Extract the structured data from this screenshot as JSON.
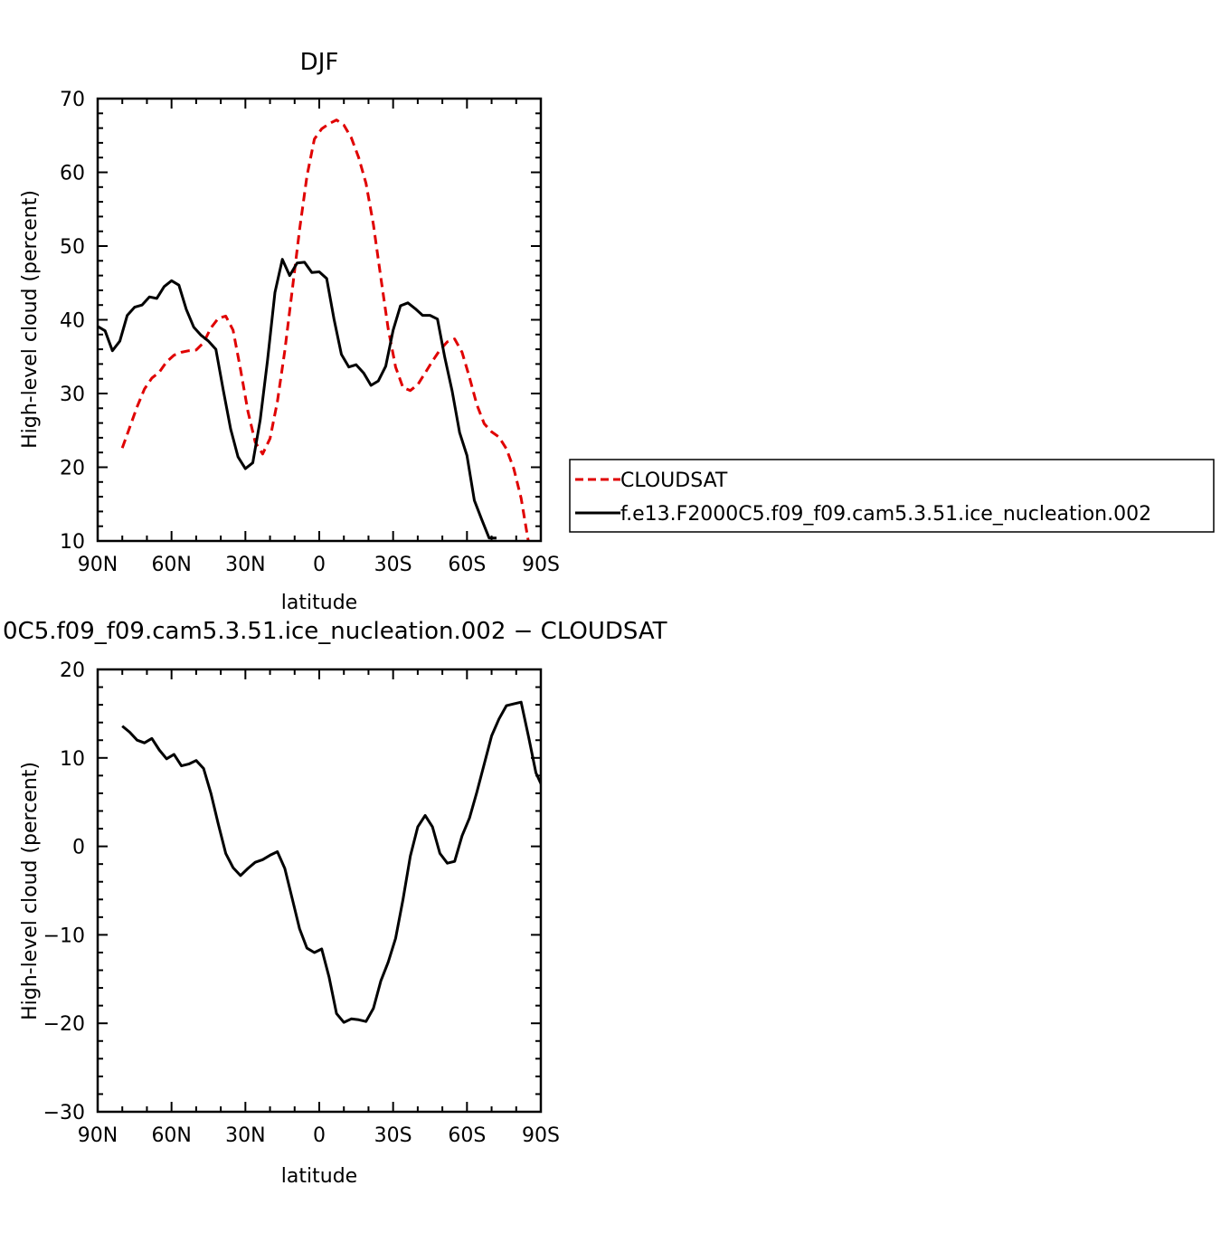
{
  "chart_data": [
    {
      "type": "line",
      "title": "DJF",
      "xlabel": "latitude",
      "ylabel": "High-level cloud (percent)",
      "xlim": [
        90,
        -90
      ],
      "ylim": [
        10,
        70
      ],
      "xticks": [
        {
          "value": 90,
          "label": "90N"
        },
        {
          "value": 60,
          "label": "60N"
        },
        {
          "value": 30,
          "label": "30N"
        },
        {
          "value": 0,
          "label": "0"
        },
        {
          "value": -30,
          "label": "30S"
        },
        {
          "value": -60,
          "label": "60S"
        },
        {
          "value": -90,
          "label": "90S"
        }
      ],
      "yticks": [
        10,
        20,
        30,
        40,
        50,
        60,
        70
      ],
      "legend": {
        "placement": "right"
      },
      "series": [
        {
          "name": "CLOUDSAT",
          "color": "#e00000",
          "dash": "dashed",
          "points": [
            [
              80,
              22.6
            ],
            [
              77,
              25.4
            ],
            [
              74,
              28.2
            ],
            [
              71,
              30.6
            ],
            [
              68,
              32.1
            ],
            [
              65,
              32.9
            ],
            [
              62,
              34.3
            ],
            [
              59,
              35.2
            ],
            [
              56,
              35.6
            ],
            [
              53,
              35.8
            ],
            [
              50,
              35.9
            ],
            [
              47,
              36.9
            ],
            [
              44,
              38.9
            ],
            [
              41,
              40.2
            ],
            [
              38,
              40.5
            ],
            [
              35,
              38.6
            ],
            [
              32,
              33.3
            ],
            [
              29,
              27.6
            ],
            [
              26,
              23.4
            ],
            [
              23,
              21.8
            ],
            [
              20,
              23.9
            ],
            [
              17,
              28.9
            ],
            [
              14,
              35.8
            ],
            [
              11,
              44.0
            ],
            [
              8,
              52.2
            ],
            [
              5,
              59.5
            ],
            [
              2,
              64.5
            ],
            [
              -1,
              65.9
            ],
            [
              -4,
              66.6
            ],
            [
              -7,
              67.1
            ],
            [
              -10,
              66.4
            ],
            [
              -13,
              64.7
            ],
            [
              -16,
              62.0
            ],
            [
              -19,
              58.5
            ],
            [
              -22,
              52.9
            ],
            [
              -25,
              45.7
            ],
            [
              -28,
              38.8
            ],
            [
              -31,
              33.6
            ],
            [
              -34,
              30.8
            ],
            [
              -37,
              30.4
            ],
            [
              -40,
              31.2
            ],
            [
              -43,
              32.8
            ],
            [
              -46,
              34.4
            ],
            [
              -49,
              35.9
            ],
            [
              -52,
              37.0
            ],
            [
              -55,
              37.4
            ],
            [
              -58,
              35.6
            ],
            [
              -61,
              32.2
            ],
            [
              -64,
              28.5
            ],
            [
              -67,
              25.9
            ],
            [
              -70,
              24.8
            ],
            [
              -73,
              24.1
            ],
            [
              -76,
              22.5
            ],
            [
              -79,
              19.8
            ],
            [
              -82,
              15.8
            ],
            [
              -85,
              9.8
            ]
          ]
        },
        {
          "name": "f.e13.F2000C5.f09_f09.cam5.3.51.ice_nucleation.002",
          "color": "#000000",
          "dash": "solid",
          "points": [
            [
              90,
              39.1
            ],
            [
              87,
              38.5
            ],
            [
              84,
              35.8
            ],
            [
              81,
              37.1
            ],
            [
              78,
              40.6
            ],
            [
              75,
              41.7
            ],
            [
              72,
              42.0
            ],
            [
              69,
              43.1
            ],
            [
              66,
              42.9
            ],
            [
              63,
              44.5
            ],
            [
              60,
              45.3
            ],
            [
              57,
              44.7
            ],
            [
              54,
              41.4
            ],
            [
              51,
              39.0
            ],
            [
              48,
              37.9
            ],
            [
              45,
              37.1
            ],
            [
              42,
              36.0
            ],
            [
              39,
              30.5
            ],
            [
              36,
              25.2
            ],
            [
              33,
              21.4
            ],
            [
              30,
              19.8
            ],
            [
              27,
              20.6
            ],
            [
              24,
              26.4
            ],
            [
              21,
              34.5
            ],
            [
              18,
              43.7
            ],
            [
              15,
              48.2
            ],
            [
              12,
              46.0
            ],
            [
              9,
              47.7
            ],
            [
              6,
              47.8
            ],
            [
              3,
              46.4
            ],
            [
              0,
              46.5
            ],
            [
              -3,
              45.6
            ],
            [
              -6,
              40.1
            ],
            [
              -9,
              35.3
            ],
            [
              -12,
              33.6
            ],
            [
              -15,
              33.9
            ],
            [
              -18,
              32.8
            ],
            [
              -21,
              31.1
            ],
            [
              -24,
              31.7
            ],
            [
              -27,
              33.7
            ],
            [
              -30,
              38.6
            ],
            [
              -33,
              41.9
            ],
            [
              -36,
              42.3
            ],
            [
              -39,
              41.5
            ],
            [
              -42,
              40.6
            ],
            [
              -45,
              40.6
            ],
            [
              -48,
              40.1
            ],
            [
              -51,
              34.9
            ],
            [
              -54,
              30.3
            ],
            [
              -57,
              24.7
            ],
            [
              -60,
              21.6
            ],
            [
              -63,
              15.5
            ],
            [
              -66,
              12.9
            ],
            [
              -69,
              10.4
            ],
            [
              -72,
              10.4
            ]
          ]
        }
      ]
    },
    {
      "type": "line",
      "title": "0C5.f09_f09.cam5.3.51.ice_nucleation.002 − CLOUDSAT",
      "xlabel": "latitude",
      "ylabel": "High-level cloud (percent)",
      "xlim": [
        90,
        -90
      ],
      "ylim": [
        -30,
        20
      ],
      "xticks": [
        {
          "value": 90,
          "label": "90N"
        },
        {
          "value": 60,
          "label": "60N"
        },
        {
          "value": 30,
          "label": "30N"
        },
        {
          "value": 0,
          "label": "0"
        },
        {
          "value": -30,
          "label": "30S"
        },
        {
          "value": -60,
          "label": "60S"
        },
        {
          "value": -90,
          "label": "90S"
        }
      ],
      "yticks": [
        -30,
        -20,
        -10,
        0,
        10,
        20
      ],
      "series": [
        {
          "color": "#000000",
          "dash": "solid",
          "points": [
            [
              80,
              13.6
            ],
            [
              77,
              12.9
            ],
            [
              74,
              12.0
            ],
            [
              71,
              11.7
            ],
            [
              68,
              12.2
            ],
            [
              65,
              10.9
            ],
            [
              62,
              9.9
            ],
            [
              59,
              10.4
            ],
            [
              56,
              9.1
            ],
            [
              53,
              9.3
            ],
            [
              50,
              9.7
            ],
            [
              47,
              8.8
            ],
            [
              44,
              6.0
            ],
            [
              41,
              2.5
            ],
            [
              38,
              -0.8
            ],
            [
              35,
              -2.4
            ],
            [
              32,
              -3.3
            ],
            [
              29,
              -2.5
            ],
            [
              26,
              -1.8
            ],
            [
              23,
              -1.5
            ],
            [
              20,
              -1.0
            ],
            [
              17,
              -0.6
            ],
            [
              14,
              -2.5
            ],
            [
              11,
              -5.9
            ],
            [
              8,
              -9.3
            ],
            [
              5,
              -11.5
            ],
            [
              2,
              -12.0
            ],
            [
              -1,
              -11.6
            ],
            [
              -4,
              -14.8
            ],
            [
              -7,
              -18.9
            ],
            [
              -10,
              -19.9
            ],
            [
              -13,
              -19.5
            ],
            [
              -16,
              -19.6
            ],
            [
              -19,
              -19.8
            ],
            [
              -22,
              -18.3
            ],
            [
              -25,
              -15.2
            ],
            [
              -28,
              -13.1
            ],
            [
              -31,
              -10.4
            ],
            [
              -34,
              -6.0
            ],
            [
              -37,
              -1.1
            ],
            [
              -40,
              2.2
            ],
            [
              -43,
              3.5
            ],
            [
              -46,
              2.2
            ],
            [
              -49,
              -0.8
            ],
            [
              -52,
              -1.9
            ],
            [
              -55,
              -1.7
            ],
            [
              -58,
              1.2
            ],
            [
              -61,
              3.2
            ],
            [
              -64,
              6.1
            ],
            [
              -67,
              9.3
            ],
            [
              -70,
              12.5
            ],
            [
              -73,
              14.4
            ],
            [
              -76,
              15.9
            ],
            [
              -79,
              16.1
            ],
            [
              -82,
              16.3
            ],
            [
              -85,
              12.4
            ],
            [
              -88,
              8.3
            ],
            [
              -91,
              6.5
            ],
            [
              -94,
              7.2
            ],
            [
              -97,
              6.2
            ],
            [
              -100,
              5.5
            ]
          ]
        }
      ]
    }
  ]
}
